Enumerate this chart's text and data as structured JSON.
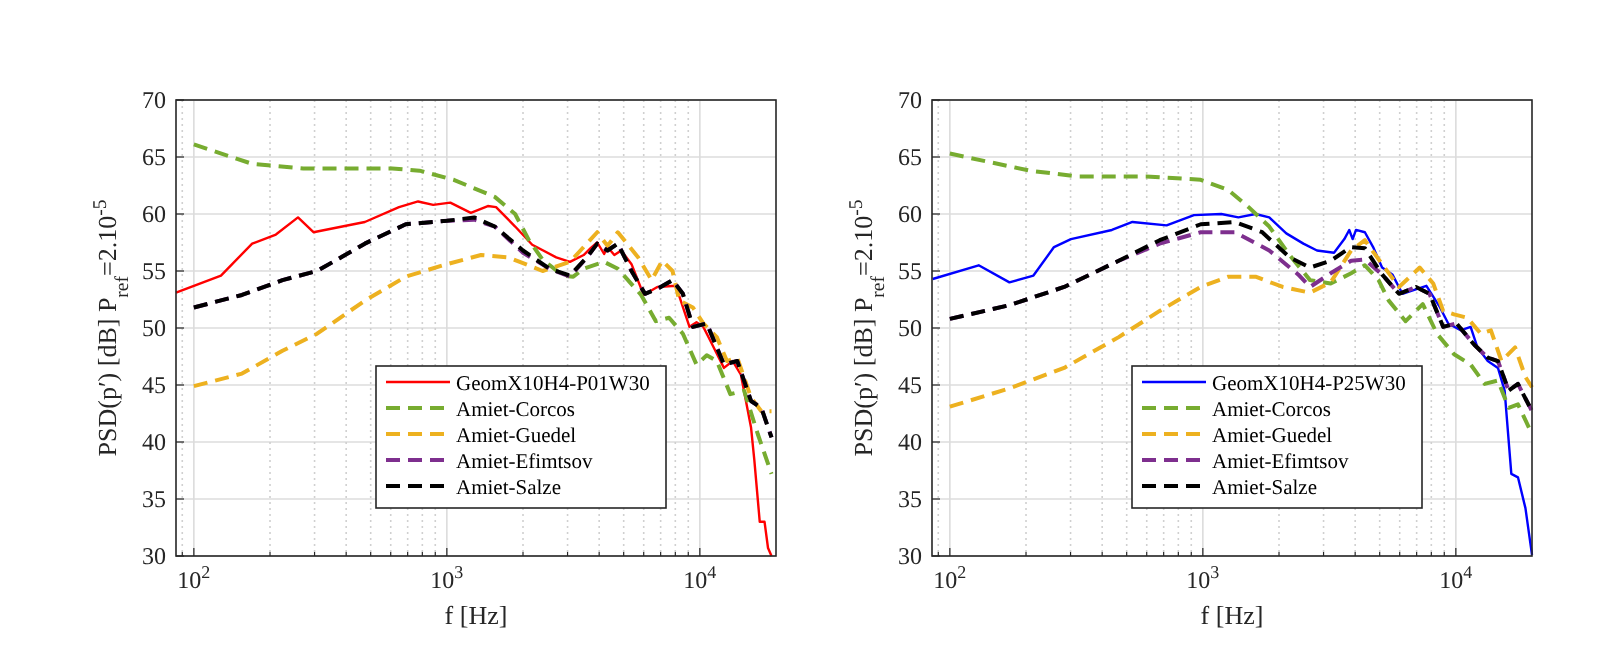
{
  "chart_data": [
    {
      "type": "line",
      "xlabel": "f [Hz]",
      "ylabel": "PSD(p′) [dB] P$_{ref}$=2.10$^{-5}$",
      "log": "x",
      "grid": true,
      "legend": "bottom right",
      "marker": "none",
      "xlim": [
        85,
        20000
      ],
      "ylim": [
        30,
        70
      ],
      "xticks": [
        {
          "value": 90,
          "label": null
        },
        {
          "value": 100,
          "label": "10$^{2}$"
        },
        {
          "value": 200,
          "label": null
        },
        {
          "value": 300,
          "label": null
        },
        {
          "value": 400,
          "label": null
        },
        {
          "value": 500,
          "label": null
        },
        {
          "value": 600,
          "label": null
        },
        {
          "value": 700,
          "label": null
        },
        {
          "value": 800,
          "label": null
        },
        {
          "value": 900,
          "label": null
        },
        {
          "value": 1000,
          "label": "10$^{3}$"
        },
        {
          "value": 2000,
          "label": null
        },
        {
          "value": 3000,
          "label": null
        },
        {
          "value": 4000,
          "label": null
        },
        {
          "value": 5000,
          "label": null
        },
        {
          "value": 6000,
          "label": null
        },
        {
          "value": 7000,
          "label": null
        },
        {
          "value": 8000,
          "label": null
        },
        {
          "value": 9000,
          "label": null
        },
        {
          "value": 10000,
          "label": "10$^{4}$"
        }
      ],
      "yticks": [
        30,
        35,
        40,
        45,
        50,
        55,
        60,
        65,
        70
      ],
      "series": [
        {
          "name": "GeomX10H4-P01W30",
          "color": "#ff0000",
          "line_style": "solid",
          "x": [
            85,
            128,
            170,
            211,
            258,
            297,
            474,
            647,
            770,
            883,
            1032,
            1244,
            1452,
            1565,
            1862,
            2175,
            2706,
            3066,
            3473,
            3700,
            3930,
            4185,
            4316,
            4592,
            4890,
            5370,
            5998,
            6790,
            8040,
            9100,
            9700,
            10320,
            10990,
            12450,
            13490,
            14530,
            15930,
            16420,
            17250,
            18020,
            18600,
            19200
          ],
          "values": [
            53.1,
            54.6,
            57.4,
            58.2,
            59.7,
            58.4,
            59.3,
            60.6,
            61.1,
            60.8,
            61.0,
            60.1,
            60.7,
            60.6,
            58.9,
            57.3,
            56.2,
            55.8,
            56.4,
            57.0,
            57.5,
            56.5,
            57.1,
            56.4,
            56.8,
            55.6,
            52.9,
            53.6,
            53.7,
            50.1,
            50.5,
            50.1,
            48.9,
            46.5,
            47.1,
            45.9,
            41.3,
            38.4,
            33.0,
            33.0,
            30.7,
            30.0
          ]
        },
        {
          "name": "Amiet-Corcos",
          "color": "#77ac30",
          "line_style": "dashed",
          "x": [
            100,
            170,
            271,
            608,
            780,
            1065,
            1547,
            1862,
            2110,
            2390,
            2880,
            3160,
            3473,
            4185,
            4740,
            5200,
            5860,
            6700,
            7560,
            8570,
            9700,
            10650,
            11670,
            13200,
            14960,
            16940,
            19200
          ],
          "values": [
            66.1,
            64.4,
            64.0,
            64.0,
            63.8,
            63.0,
            61.5,
            60.0,
            57.7,
            56.0,
            54.6,
            54.5,
            55.2,
            55.8,
            55.2,
            54.2,
            52.9,
            50.6,
            50.9,
            49.5,
            46.8,
            47.6,
            47.1,
            44.2,
            44.5,
            40.7,
            37.2
          ]
        },
        {
          "name": "Amiet-Guedel",
          "color": "#edb120",
          "line_style": "dashed",
          "x": [
            100,
            155,
            224,
            307,
            474,
            688,
            1000,
            1365,
            1750,
            2390,
            3066,
            3930,
            4316,
            4740,
            5700,
            6450,
            7100,
            7800,
            8290,
            9390,
            10320,
            11670,
            12800,
            14060,
            15930,
            17500,
            19200
          ],
          "values": [
            44.9,
            46.0,
            48.0,
            49.5,
            52.4,
            54.5,
            55.6,
            56.4,
            56.2,
            55.0,
            55.8,
            58.4,
            57.2,
            58.4,
            56.2,
            54.2,
            55.9,
            55.0,
            52.4,
            51.8,
            50.4,
            49.2,
            47.1,
            47.4,
            43.9,
            42.7,
            42.7
          ]
        },
        {
          "name": "Amiet-Efimtsov",
          "color": "#7e2f8e",
          "line_style": "dashed",
          "x": [
            100,
            155,
            224,
            307,
            474,
            688,
            1000,
            1283,
            1547,
            2000,
            2543,
            3066,
            3580,
            3930,
            4316,
            4740,
            5370,
            6070,
            6880,
            7800,
            8570,
            9390,
            10650,
            12450,
            14060,
            15930,
            17500,
            19200
          ],
          "values": [
            51.8,
            52.9,
            54.2,
            55.0,
            57.4,
            59.1,
            59.4,
            59.5,
            58.9,
            56.6,
            55.2,
            54.5,
            56.2,
            57.4,
            56.8,
            57.4,
            55.0,
            53.0,
            53.5,
            54.2,
            53.0,
            50.1,
            50.4,
            46.8,
            47.1,
            43.6,
            43.0,
            40.4
          ]
        },
        {
          "name": "Amiet-Salze",
          "color": "#000000",
          "line_style": "dashed",
          "x": [
            100,
            155,
            224,
            307,
            474,
            688,
            1000,
            1283,
            1547,
            2000,
            2543,
            3066,
            3580,
            3930,
            4316,
            4740,
            5370,
            6070,
            6880,
            7800,
            8570,
            9390,
            10650,
            12450,
            14060,
            15930,
            17500,
            19200
          ],
          "values": [
            51.8,
            52.9,
            54.2,
            55.0,
            57.4,
            59.1,
            59.4,
            59.7,
            58.9,
            56.8,
            55.2,
            54.6,
            56.2,
            57.4,
            56.8,
            57.4,
            55.0,
            53.0,
            53.5,
            54.2,
            53.0,
            50.1,
            50.4,
            46.8,
            47.1,
            43.6,
            43.0,
            40.4
          ]
        }
      ]
    },
    {
      "type": "line",
      "xlabel": "f [Hz]",
      "ylabel": "PSD(p′) [dB] P$_{ref}$=2.10$^{-5}$",
      "log": "x",
      "grid": true,
      "legend": "bottom right",
      "marker": "none",
      "xlim": [
        85,
        20000
      ],
      "ylim": [
        30,
        70
      ],
      "xticks": [
        {
          "value": 90,
          "label": null
        },
        {
          "value": 100,
          "label": "10$^{2}$"
        },
        {
          "value": 200,
          "label": null
        },
        {
          "value": 300,
          "label": null
        },
        {
          "value": 400,
          "label": null
        },
        {
          "value": 500,
          "label": null
        },
        {
          "value": 600,
          "label": null
        },
        {
          "value": 700,
          "label": null
        },
        {
          "value": 800,
          "label": null
        },
        {
          "value": 900,
          "label": null
        },
        {
          "value": 1000,
          "label": "10$^{3}$"
        },
        {
          "value": 2000,
          "label": null
        },
        {
          "value": 3000,
          "label": null
        },
        {
          "value": 4000,
          "label": null
        },
        {
          "value": 5000,
          "label": null
        },
        {
          "value": 6000,
          "label": null
        },
        {
          "value": 7000,
          "label": null
        },
        {
          "value": 8000,
          "label": null
        },
        {
          "value": 9000,
          "label": null
        },
        {
          "value": 10000,
          "label": "10$^{4}$"
        }
      ],
      "yticks": [
        30,
        35,
        40,
        45,
        50,
        55,
        60,
        65,
        70
      ],
      "series": [
        {
          "name": "GeomX10H4-P25W30",
          "color": "#0000ff",
          "line_style": "solid",
          "x": [
            85.5,
            130,
            172,
            214,
            258,
            301,
            437,
            527,
            719,
            922,
            1183,
            1382,
            1615,
            1830,
            2137,
            2497,
            2826,
            3300,
            3625,
            3790,
            3910,
            4030,
            4370,
            4710,
            5110,
            5610,
            6150,
            6760,
            7650,
            8660,
            9330,
            10440,
            11440,
            12170,
            13370,
            14670,
            15590,
            16570,
            17600,
            18840,
            20000
          ],
          "values": [
            54.3,
            55.5,
            54.0,
            54.6,
            57.1,
            57.8,
            58.6,
            59.3,
            59.0,
            59.9,
            60.0,
            59.7,
            60.0,
            59.7,
            58.3,
            57.4,
            56.8,
            56.6,
            57.8,
            58.6,
            57.8,
            58.6,
            58.4,
            57.1,
            55.3,
            54.7,
            53.0,
            53.3,
            53.7,
            51.8,
            50.4,
            49.8,
            50.1,
            48.3,
            47.1,
            46.5,
            44.5,
            37.2,
            36.9,
            34.2,
            30.1
          ]
        },
        {
          "name": "Amiet-Corcos",
          "color": "#77ac30",
          "line_style": "dashed",
          "x": [
            100,
            207,
            320,
            597,
            981,
            1260,
            1517,
            1830,
            2202,
            2652,
            3200,
            3856,
            4370,
            4950,
            5430,
            6330,
            7400,
            8420,
            9840,
            11440,
            13000,
            14670,
            16170,
            17600,
            20000
          ],
          "values": [
            65.3,
            63.8,
            63.3,
            63.3,
            63.0,
            62.1,
            60.6,
            58.9,
            56.4,
            54.2,
            53.9,
            54.8,
            55.5,
            54.2,
            52.4,
            50.6,
            52.1,
            49.5,
            47.7,
            46.8,
            45.1,
            45.4,
            43.0,
            43.3,
            40.7
          ]
        },
        {
          "name": "Amiet-Guedel",
          "color": "#edb120",
          "line_style": "dashed",
          "x": [
            100,
            172,
            283,
            465,
            675,
            981,
            1260,
            1615,
            2070,
            2652,
            3200,
            3856,
            4370,
            5110,
            5960,
            7200,
            8140,
            8910,
            9840,
            11090,
            12550,
            13760,
            15150,
            17150,
            18840,
            20000
          ],
          "values": [
            43.1,
            44.7,
            46.5,
            49.2,
            51.5,
            53.6,
            54.5,
            54.5,
            53.6,
            53.1,
            54.0,
            56.8,
            57.7,
            55.6,
            53.6,
            55.3,
            53.9,
            51.5,
            51.2,
            50.9,
            49.5,
            49.8,
            47.1,
            48.3,
            45.7,
            44.8
          ]
        },
        {
          "name": "Amiet-Efimtsov",
          "color": "#7e2f8e",
          "line_style": "dashed",
          "x": [
            100,
            172,
            283,
            465,
            675,
            981,
            1340,
            1830,
            2380,
            2652,
            3200,
            3856,
            4370,
            5110,
            5960,
            6960,
            7870,
            8910,
            10060,
            11750,
            13370,
            14670,
            16170,
            17600,
            20000
          ],
          "values": [
            50.8,
            52.0,
            53.6,
            55.9,
            57.4,
            58.4,
            58.4,
            56.8,
            54.7,
            53.6,
            54.8,
            55.9,
            56.0,
            54.7,
            53.0,
            53.6,
            53.0,
            50.1,
            50.4,
            48.6,
            47.4,
            47.1,
            44.5,
            45.1,
            42.7
          ]
        },
        {
          "name": "Amiet-Salze",
          "color": "#000000",
          "line_style": "dashed",
          "x": [
            100,
            172,
            283,
            465,
            675,
            981,
            1340,
            1717,
            2202,
            2652,
            3200,
            3856,
            4370,
            5110,
            5960,
            6960,
            7870,
            8910,
            10060,
            11750,
            13370,
            14670,
            16170,
            17600,
            20000
          ],
          "values": [
            50.8,
            52.0,
            53.6,
            55.9,
            57.7,
            59.1,
            59.3,
            58.4,
            56.2,
            55.3,
            55.9,
            57.1,
            57.0,
            54.7,
            53.0,
            53.6,
            53.0,
            50.1,
            50.4,
            48.6,
            47.4,
            47.1,
            44.5,
            45.1,
            42.7
          ]
        }
      ]
    }
  ]
}
